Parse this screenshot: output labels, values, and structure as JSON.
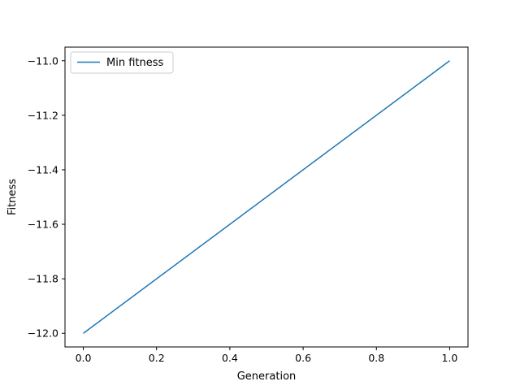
{
  "chart_data": {
    "type": "line",
    "title": "",
    "xlabel": "Generation",
    "ylabel": "Fitness",
    "xlim": [
      -0.05,
      1.05
    ],
    "ylim": [
      -12.05,
      -10.95
    ],
    "xticks": [
      0.0,
      0.2,
      0.4,
      0.6,
      0.8,
      1.0
    ],
    "xtick_labels": [
      "0.0",
      "0.2",
      "0.4",
      "0.6",
      "0.8",
      "1.0"
    ],
    "yticks": [
      -12.0,
      -11.8,
      -11.6,
      -11.4,
      -11.2,
      -11.0
    ],
    "ytick_labels": [
      "−12.0",
      "−11.8",
      "−11.6",
      "−11.4",
      "−11.2",
      "−11.0"
    ],
    "grid": false,
    "legend_position": "top-left",
    "series": [
      {
        "name": "Min fitness",
        "color": "#1f77b4",
        "x": [
          0,
          1
        ],
        "y": [
          -12.0,
          -11.0
        ]
      }
    ]
  }
}
